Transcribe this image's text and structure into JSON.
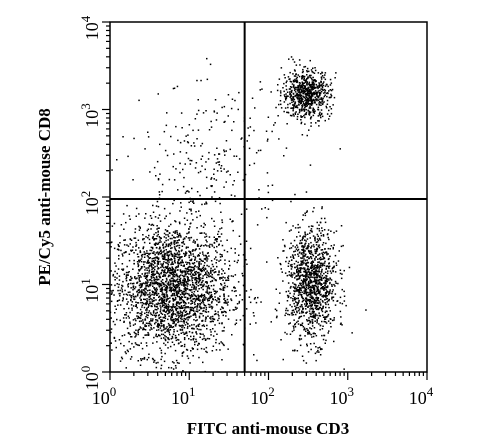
{
  "chart_data": {
    "type": "scatter",
    "plot_kind": "flow-cytometry dot plot",
    "title": "",
    "xlabel": "FITC anti-mouse CD3",
    "ylabel": "PE/Cy5 anti-mouse CD8",
    "xscale": "log",
    "yscale": "log",
    "xlim": [
      1,
      10000
    ],
    "ylim": [
      1,
      10000
    ],
    "x_ticks": [
      {
        "base": "10",
        "exp": "0"
      },
      {
        "base": "10",
        "exp": "1"
      },
      {
        "base": "10",
        "exp": "2"
      },
      {
        "base": "10",
        "exp": "3"
      },
      {
        "base": "10",
        "exp": "4"
      }
    ],
    "y_ticks": [
      {
        "base": "10",
        "exp": "0"
      },
      {
        "base": "10",
        "exp": "1"
      },
      {
        "base": "10",
        "exp": "2"
      },
      {
        "base": "10",
        "exp": "3"
      },
      {
        "base": "10",
        "exp": "4"
      }
    ],
    "quadrant_gates": {
      "x": 50,
      "y": 95
    },
    "grid": false,
    "dot_color": "#000000",
    "populations": [
      {
        "center_x": 6,
        "center_y": 9,
        "approx_events": 2600
      },
      {
        "center_x": 350,
        "center_y": 10,
        "approx_events": 1200
      },
      {
        "center_x": 300,
        "center_y": 1500,
        "approx_events": 700
      },
      {
        "center_x": 20,
        "center_y": 250,
        "approx_events": 250
      }
    ]
  }
}
